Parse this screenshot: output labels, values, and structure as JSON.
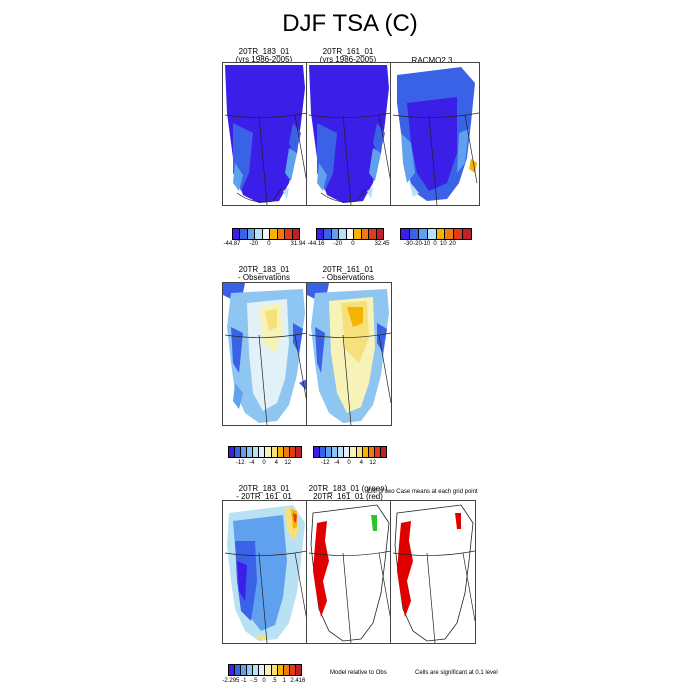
{
  "title": "DJF TSA (C)",
  "row1": {
    "panels": [
      {
        "title_line1": "20TR_183_01",
        "title_line2": "(yrs 1986-2005)"
      },
      {
        "title_line1": "20TR_161_01",
        "title_line2": "(yrs 1986-2005)"
      },
      {
        "title_line1": "RACMO2.3",
        "title_line2": ""
      }
    ],
    "colorbars": [
      {
        "labels": [
          "-44.87",
          "-20",
          "0",
          "31.94"
        ]
      },
      {
        "labels": [
          "-44.16",
          "-20",
          "0",
          "32.45"
        ]
      },
      {
        "labels": [
          "-30",
          "-20",
          "-10",
          "0",
          "10",
          "20"
        ]
      }
    ]
  },
  "row2": {
    "panels": [
      {
        "title_line1": "20TR_183_01",
        "title_line2": "- Observations"
      },
      {
        "title_line1": "20TR_161_01",
        "title_line2": "- Observations"
      }
    ],
    "colorbars": [
      {
        "labels": [
          "-12",
          "-4",
          "0",
          "4",
          "12"
        ]
      },
      {
        "labels": [
          "-12",
          "-4",
          "0",
          "4",
          "12"
        ]
      }
    ]
  },
  "row3": {
    "panels": [
      {
        "title_line1": "20TR_183_01",
        "title_line2": "- 20TR_161_01"
      },
      {
        "title_line1": "20TR_183_01 (green)",
        "title_line2": "20TR_161_01 (red)"
      },
      {
        "title_line1": "",
        "title_line2": ""
      }
    ],
    "overlay_note": "Diff of two Case means at each grid point",
    "colorbar": {
      "labels": [
        "-2.295",
        "-1",
        "-.5",
        "0",
        ".5",
        "1",
        "2.416"
      ]
    },
    "note_model": "Model relative to Obs",
    "note_sig": "Cells are significant at 0.1 level"
  },
  "colors": {
    "abs_scale": [
      "#3b1ee8",
      "#3a62e6",
      "#5fa1ee",
      "#b8e2f4",
      "#f7f7f7",
      "#f4b400",
      "#f07a10",
      "#e23b1c",
      "#c0202a"
    ],
    "anom_scale": [
      "#3b1ee8",
      "#3a62e6",
      "#5fa1ee",
      "#8ec6f1",
      "#b8e2f4",
      "#e2f1f7",
      "#f7f3b8",
      "#f6e07a",
      "#f4b400",
      "#f07a10",
      "#e23b1c",
      "#c0202a"
    ],
    "land_ice_cold": "#3b1ee8",
    "margin_blue": "#3a62e6",
    "warm_yellow": "#f6ea8a",
    "sig_red": "#e00000",
    "sig_green": "#2cc42c"
  }
}
